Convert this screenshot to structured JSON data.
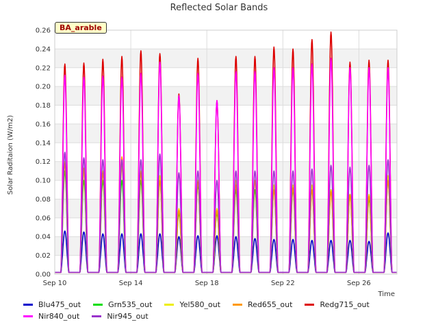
{
  "chart_data": {
    "type": "line",
    "title": "Reflected Solar Bands",
    "xlabel": "Time",
    "ylabel": "Solar Raditaion (W/m2)",
    "site_label": "BA_arable",
    "ylim": [
      0,
      0.26
    ],
    "yticks": [
      "0.00",
      "0.02",
      "0.04",
      "0.06",
      "0.08",
      "0.10",
      "0.12",
      "0.14",
      "0.16",
      "0.18",
      "0.20",
      "0.22",
      "0.24",
      "0.26"
    ],
    "xlim": [
      "2023-09-10",
      "2023-09-28"
    ],
    "xticks": [
      {
        "date": "2023-09-10",
        "label": "Sep 10"
      },
      {
        "date": "2023-09-14",
        "label": "Sep 14"
      },
      {
        "date": "2023-09-18",
        "label": "Sep 18"
      },
      {
        "date": "2023-09-22",
        "label": "Sep 22"
      },
      {
        "date": "2023-09-26",
        "label": "Sep 26"
      }
    ],
    "grid": true,
    "legend_position": "bottom",
    "days": [
      "2023-09-10",
      "2023-09-11",
      "2023-09-12",
      "2023-09-13",
      "2023-09-14",
      "2023-09-15",
      "2023-09-16",
      "2023-09-17",
      "2023-09-18",
      "2023-09-19",
      "2023-09-20",
      "2023-09-21",
      "2023-09-22",
      "2023-09-23",
      "2023-09-24",
      "2023-09-25",
      "2023-09-26",
      "2023-09-27"
    ],
    "series": [
      {
        "name": "Blu475_out",
        "color": "#0000cc",
        "peaks": [
          0.046,
          0.045,
          0.043,
          0.043,
          0.043,
          0.043,
          0.04,
          0.041,
          0.041,
          0.04,
          0.038,
          0.037,
          0.037,
          0.036,
          0.036,
          0.036,
          0.035,
          0.044
        ]
      },
      {
        "name": "Grn535_out",
        "color": "#00dd00",
        "peaks": [
          0.11,
          0.1,
          0.1,
          0.1,
          0.1,
          0.1,
          0.065,
          0.095,
          0.065,
          0.09,
          0.09,
          0.09,
          0.09,
          0.09,
          0.09,
          0.085,
          0.08,
          0.1
        ]
      },
      {
        "name": "Yel580_out",
        "color": "#eeee00",
        "peaks": [
          0.12,
          0.11,
          0.11,
          0.115,
          0.11,
          0.105,
          0.07,
          0.1,
          0.07,
          0.1,
          0.1,
          0.095,
          0.095,
          0.095,
          0.09,
          0.085,
          0.085,
          0.105
        ]
      },
      {
        "name": "Red655_out",
        "color": "#ff9900",
        "peaks": [
          0.118,
          0.113,
          0.108,
          0.125,
          0.108,
          0.1,
          0.068,
          0.098,
          0.068,
          0.095,
          0.1,
          0.09,
          0.092,
          0.09,
          0.088,
          0.085,
          0.083,
          0.1
        ]
      },
      {
        "name": "Redg715_out",
        "color": "#dd0000",
        "peaks": [
          0.224,
          0.225,
          0.229,
          0.232,
          0.238,
          0.235,
          0.192,
          0.23,
          0.185,
          0.232,
          0.232,
          0.242,
          0.24,
          0.25,
          0.258,
          0.226,
          0.228,
          0.228
        ]
      },
      {
        "name": "Nir840_out",
        "color": "#ff00ff",
        "peaks": [
          0.212,
          0.21,
          0.211,
          0.21,
          0.214,
          0.226,
          0.19,
          0.214,
          0.185,
          0.216,
          0.216,
          0.22,
          0.22,
          0.224,
          0.23,
          0.22,
          0.22,
          0.22
        ]
      },
      {
        "name": "Nir945_out",
        "color": "#9933cc",
        "peaks": [
          0.13,
          0.124,
          0.122,
          0.122,
          0.122,
          0.128,
          0.108,
          0.11,
          0.1,
          0.11,
          0.11,
          0.11,
          0.11,
          0.112,
          0.116,
          0.114,
          0.116,
          0.122
        ]
      }
    ]
  }
}
